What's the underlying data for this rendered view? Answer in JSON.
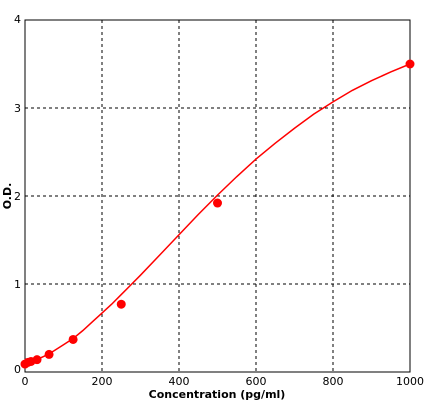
{
  "chart_data": {
    "type": "scatter",
    "title": "",
    "xlabel": "Concentration (pg/ml)",
    "ylabel": "O.D.",
    "xlim": [
      0,
      1000
    ],
    "ylim": [
      0,
      4
    ],
    "x_ticks": [
      0,
      200,
      400,
      600,
      800,
      1000
    ],
    "y_ticks": [
      0,
      1,
      2,
      3,
      4
    ],
    "x_tick_labels": [
      "0",
      "200",
      "400",
      "600",
      "800",
      "1000"
    ],
    "y_tick_labels": [
      "0",
      "1",
      "2",
      "3",
      "4"
    ],
    "grid": true,
    "legend": "none",
    "series": [
      {
        "x": [
          0,
          7.8,
          15.6,
          31.2,
          62.5,
          125,
          250,
          500,
          1000
        ],
        "y": [
          0.09,
          0.11,
          0.12,
          0.14,
          0.2,
          0.37,
          0.77,
          1.92,
          3.5
        ]
      }
    ],
    "fit_curve": {
      "x": [
        0,
        10,
        25,
        50,
        75,
        100,
        125,
        150,
        175,
        200,
        225,
        250,
        275,
        300,
        350,
        400,
        450,
        500,
        550,
        600,
        650,
        700,
        750,
        800,
        850,
        900,
        950,
        1000
      ],
      "y": [
        0.08,
        0.1,
        0.13,
        0.18,
        0.24,
        0.31,
        0.38,
        0.47,
        0.57,
        0.67,
        0.77,
        0.88,
        0.99,
        1.1,
        1.33,
        1.56,
        1.79,
        2.01,
        2.22,
        2.42,
        2.6,
        2.77,
        2.93,
        3.07,
        3.2,
        3.31,
        3.41,
        3.5
      ]
    },
    "colors": {
      "series": "#ff0000",
      "grid": "#000000",
      "frame": "#000000",
      "background": "#ffffff"
    }
  }
}
